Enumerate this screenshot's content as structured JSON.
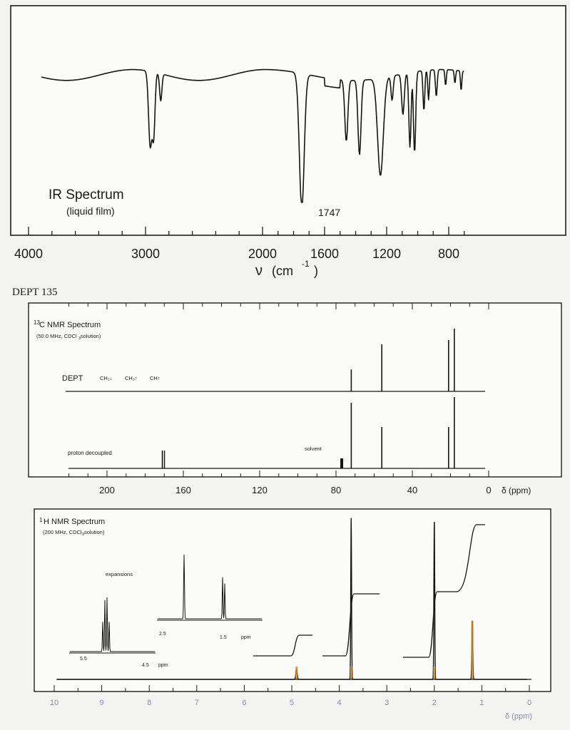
{
  "ir": {
    "title": "IR Spectrum",
    "subtitle": "(liquid film)",
    "peak_label": "1747",
    "axis_label_nu": "ν",
    "axis_label_unit": "(cm",
    "axis_label_exp": "-1",
    "axis_label_close": ")",
    "ticks": [
      "4000",
      "3000",
      "2000",
      "1600",
      "1200",
      "800"
    ]
  },
  "dept_heading": "DEPT 135",
  "c13": {
    "title_sup": "13",
    "title": "C NMR Spectrum",
    "subtitle_a": "(50.0 MHz, CDCl",
    "subtitle_sub": "3",
    "subtitle_b": " solution)",
    "dept_label": "DEPT",
    "dept_legend": [
      "CH₂↓",
      "CH₃↑",
      "CH↑"
    ],
    "proton_decoupled_label": "proton decoupled",
    "solvent_label": "solvent",
    "ticks": [
      "200",
      "160",
      "120",
      "80",
      "40",
      "0"
    ],
    "unit_label": "δ (ppm)"
  },
  "h1": {
    "title_sup": "1",
    "title": "H NMR Spectrum",
    "subtitle_a": "(200 MHz, CDCl",
    "subtitle_sub": "3",
    "subtitle_b": " solution)",
    "expansions_label": "expansions",
    "exp1_ticks": [
      "5.5",
      "4.5"
    ],
    "exp1_unit": "ppm",
    "exp2_ticks": [
      "2.5",
      "1.5"
    ],
    "exp2_unit": "ppm",
    "ticks": [
      "10",
      "9",
      "8",
      "7",
      "6",
      "5",
      "4",
      "3",
      "2",
      "1",
      "0"
    ],
    "unit_label": "δ (ppm)"
  },
  "chart_data": [
    {
      "type": "line",
      "title": "IR Spectrum",
      "xlabel": "ν (cm-1)",
      "x_range": [
        4000,
        650
      ],
      "x_axis_breaks": "expanded scale below 2000",
      "annotated_peak_cm-1": 1747,
      "approx_absorption_bands_cm-1": [
        2960,
        2930,
        1747,
        1450,
        1370,
        1240,
        1050,
        1020
      ],
      "grid": false
    },
    {
      "type": "bar",
      "title": "13C NMR Spectrum",
      "xlabel": "δ (ppm)",
      "x_range": [
        220,
        -5
      ],
      "proton_decoupled_peaks_ppm": [
        171,
        72,
        56,
        21,
        18
      ],
      "solvent_peak_ppm": 77,
      "dept135_peaks_ppm": [
        72,
        56,
        21,
        18
      ],
      "dept135_relative_heights": [
        0.35,
        0.75,
        0.82,
        1.0
      ]
    },
    {
      "type": "line",
      "title": "1H NMR Spectrum",
      "xlabel": "δ (ppm)",
      "x_range": [
        10,
        0
      ],
      "peaks_ppm": [
        4.9,
        3.75,
        2.0,
        1.2
      ],
      "peak_relative_heights": [
        0.06,
        0.95,
        0.95,
        0.35
      ],
      "integral_steps_relative": [
        1,
        3,
        3,
        6
      ]
    }
  ]
}
